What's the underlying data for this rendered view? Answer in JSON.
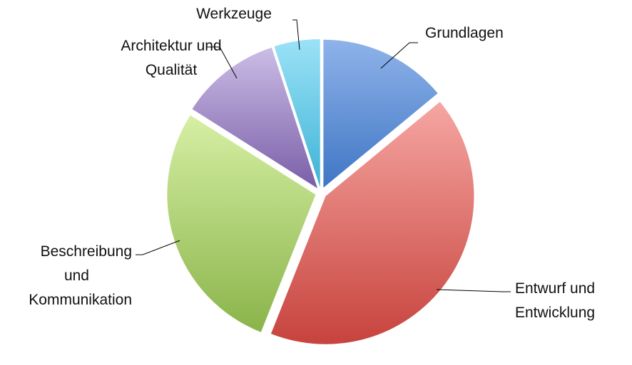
{
  "chart_data": {
    "type": "pie",
    "title": "",
    "legend": "none",
    "slices": [
      {
        "label": "Grundlagen",
        "lines": [
          "Grundlagen"
        ],
        "value": 14,
        "color": "#8fb3ea",
        "color_dark": "#3f76c4"
      },
      {
        "label": "Entwurf und Entwicklung",
        "lines": [
          "Entwurf und",
          "Entwicklung"
        ],
        "value": 42,
        "color": "#f6a6a2",
        "color_dark": "#c7433d"
      },
      {
        "label": "Beschreibung und Kommunikation",
        "lines": [
          "Beschreibung",
          "und",
          "Kommunikation"
        ],
        "value": 28,
        "color": "#d6efa4",
        "color_dark": "#8ab44a"
      },
      {
        "label": "Architektur und Qualität",
        "lines": [
          "Architektur und",
          "Qualität"
        ],
        "value": 11,
        "color": "#cbbde6",
        "color_dark": "#7a5ea8"
      },
      {
        "label": "Werkzeuge",
        "lines": [
          "Werkzeuge"
        ],
        "value": 5,
        "color": "#9be2f7",
        "color_dark": "#3fb3d6"
      }
    ]
  }
}
